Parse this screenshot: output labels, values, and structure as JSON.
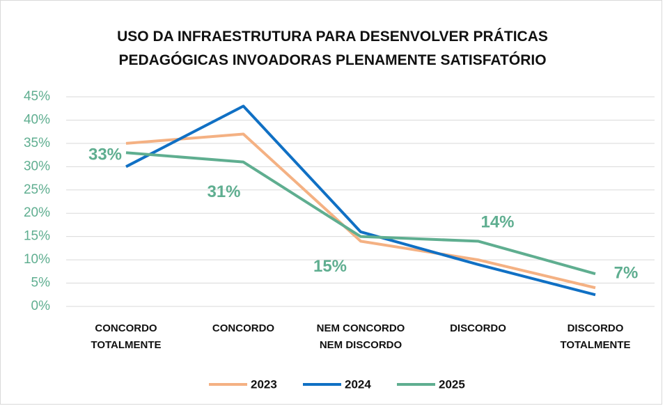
{
  "chart_data": {
    "type": "line",
    "title": "USO DA INFRAESTRUTURA PARA DESENVOLVER PRÁTICAS PEDAGÓGICAS INVOADORAS PLENAMENTE SATISFATÓRIO",
    "categories": [
      "CONCORDO TOTALMENTE",
      "CONCORDO",
      "NEM CONCORDO NEM DISCORDO",
      "DISCORDO",
      "DISCORDO TOTALMENTE"
    ],
    "series": [
      {
        "name": "2023",
        "color": "#f4b183",
        "values": [
          35,
          37,
          14,
          10,
          4
        ]
      },
      {
        "name": "2024",
        "color": "#1070c4",
        "values": [
          30,
          43,
          16,
          9,
          2.5
        ]
      },
      {
        "name": "2025",
        "color": "#5fae90",
        "values": [
          33,
          31,
          15,
          14,
          7
        ],
        "value_labels": [
          "33%",
          "31%",
          "15%",
          "14%",
          "7%"
        ]
      }
    ],
    "ylim": [
      0,
      45
    ],
    "yticks": [
      {
        "value": 0,
        "label": "0%"
      },
      {
        "value": 5,
        "label": "5%"
      },
      {
        "value": 10,
        "label": "10%"
      },
      {
        "value": 15,
        "label": "15%"
      },
      {
        "value": 20,
        "label": "20%"
      },
      {
        "value": 25,
        "label": "25%"
      },
      {
        "value": 30,
        "label": "30%"
      },
      {
        "value": 35,
        "label": "35%"
      },
      {
        "value": 40,
        "label": "40%"
      },
      {
        "value": 45,
        "label": "45%"
      }
    ],
    "grid": true,
    "legend": "bottom"
  }
}
